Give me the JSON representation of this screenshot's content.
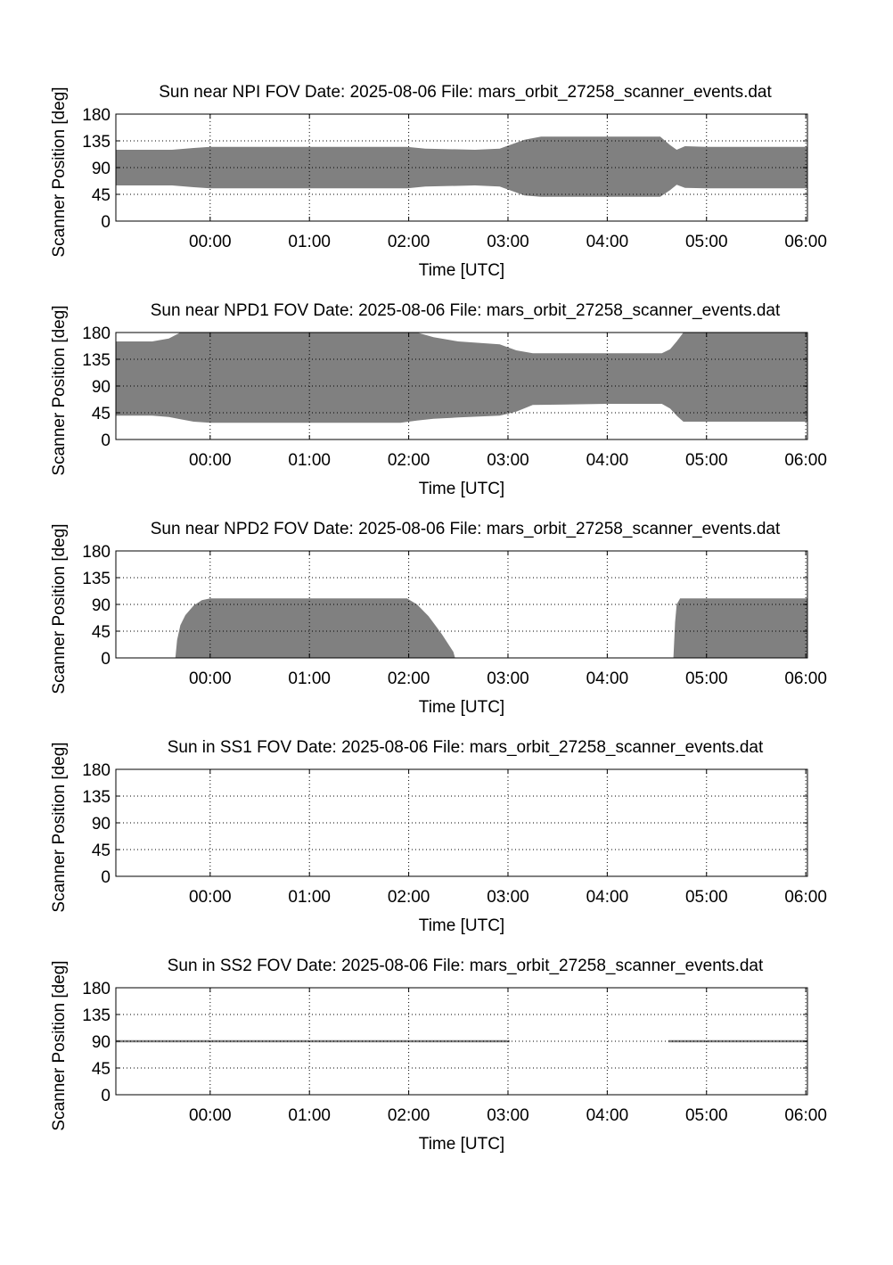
{
  "figure": {
    "background": "#ffffff",
    "fill_color": "#808080",
    "grid_color": "#000000"
  },
  "chart_data": [
    {
      "type": "area",
      "title": "Sun near NPI FOV   Date: 2025-08-06   File: mars_orbit_27258_scanner_events.dat",
      "xlabel": "Time [UTC]",
      "ylabel": "Scanner Position [deg]",
      "xlim": [
        "-00:57",
        "06:01"
      ],
      "ylim": [
        0,
        180
      ],
      "xticks": [
        "00:00",
        "01:00",
        "02:00",
        "03:00",
        "04:00",
        "05:00",
        "06:00"
      ],
      "yticks": [
        0,
        45,
        90,
        135,
        180
      ],
      "grid": true,
      "bands": [
        {
          "t": [
            "-00:57",
            "-00:23",
            "-00:10",
            "00:00",
            "01:00",
            "01:59",
            "02:10",
            "02:40",
            "02:55",
            "03:01",
            "03:10",
            "03:20",
            "04:00",
            "04:32",
            "04:38",
            "04:42",
            "04:47",
            "05:00",
            "06:01"
          ],
          "lower": [
            60,
            60,
            57,
            55,
            55,
            55,
            58,
            60,
            58,
            52,
            43,
            41,
            41,
            41,
            52,
            61,
            56,
            55,
            55
          ],
          "upper": [
            120,
            120,
            123,
            125,
            125,
            125,
            122,
            120,
            122,
            128,
            137,
            142,
            142,
            142,
            128,
            120,
            126,
            125,
            125
          ]
        }
      ]
    },
    {
      "type": "area",
      "title": "Sun near NPD1 FOV   Date: 2025-08-06   File: mars_orbit_27258_scanner_events.dat",
      "xlabel": "Time [UTC]",
      "ylabel": "Scanner Position [deg]",
      "xlim": [
        "-00:57",
        "06:01"
      ],
      "ylim": [
        0,
        180
      ],
      "xticks": [
        "00:00",
        "01:00",
        "02:00",
        "03:00",
        "04:00",
        "05:00",
        "06:00"
      ],
      "yticks": [
        0,
        45,
        90,
        135,
        180
      ],
      "grid": true,
      "bands": [
        {
          "t": [
            "-00:57",
            "-00:35",
            "-00:25",
            "-00:18",
            "-00:10",
            "00:00",
            "01:00",
            "01:55",
            "02:05",
            "02:15",
            "02:30",
            "02:55",
            "03:05",
            "03:15",
            "04:00",
            "04:33",
            "04:38",
            "04:42",
            "04:46",
            "05:00",
            "06:01"
          ],
          "lower": [
            40,
            40,
            38,
            34,
            30,
            28,
            28,
            28,
            32,
            35,
            37,
            40,
            47,
            58,
            60,
            60,
            52,
            40,
            30,
            30,
            30
          ],
          "upper": [
            165,
            165,
            170,
            180,
            180,
            180,
            180,
            180,
            180,
            172,
            165,
            160,
            150,
            145,
            145,
            145,
            152,
            165,
            180,
            180,
            180
          ]
        }
      ]
    },
    {
      "type": "area",
      "title": "Sun near NPD2 FOV   Date: 2025-08-06   File: mars_orbit_27258_scanner_events.dat",
      "xlabel": "Time [UTC]",
      "ylabel": "Scanner Position [deg]",
      "xlim": [
        "-00:57",
        "06:01"
      ],
      "ylim": [
        0,
        180
      ],
      "xticks": [
        "00:00",
        "01:00",
        "02:00",
        "03:00",
        "04:00",
        "05:00",
        "06:00"
      ],
      "yticks": [
        0,
        45,
        90,
        135,
        180
      ],
      "grid": true,
      "bands": [
        {
          "t": [
            "-00:21",
            "-00:20",
            "-00:18",
            "-00:15",
            "-00:10",
            "-00:05",
            "00:00",
            "01:00",
            "01:59",
            "02:05",
            "02:12",
            "02:20",
            "02:27",
            "02:28"
          ],
          "lower": [
            0,
            0,
            0,
            0,
            0,
            0,
            0,
            0,
            0,
            0,
            0,
            0,
            0,
            0
          ],
          "upper": [
            0,
            30,
            55,
            72,
            88,
            97,
            100,
            100,
            100,
            90,
            70,
            40,
            10,
            0
          ]
        },
        {
          "t": [
            "04:40",
            "04:41",
            "04:42",
            "04:44",
            "06:01"
          ],
          "lower": [
            0,
            0,
            0,
            0,
            0
          ],
          "upper": [
            0,
            60,
            90,
            100,
            100
          ]
        }
      ]
    },
    {
      "type": "area",
      "title": "Sun in SS1 FOV   Date: 2025-08-06   File: mars_orbit_27258_scanner_events.dat",
      "xlabel": "Time [UTC]",
      "ylabel": "Scanner Position [deg]",
      "xlim": [
        "-00:57",
        "06:01"
      ],
      "ylim": [
        0,
        180
      ],
      "xticks": [
        "00:00",
        "01:00",
        "02:00",
        "03:00",
        "04:00",
        "05:00",
        "06:00"
      ],
      "yticks": [
        0,
        45,
        90,
        135,
        180
      ],
      "grid": true,
      "bands": []
    },
    {
      "type": "area",
      "title": "Sun in SS2 FOV   Date: 2025-08-06   File: mars_orbit_27258_scanner_events.dat",
      "xlabel": "Time [UTC]",
      "ylabel": "Scanner Position [deg]",
      "xlim": [
        "-00:57",
        "06:01"
      ],
      "ylim": [
        0,
        180
      ],
      "xticks": [
        "00:00",
        "01:00",
        "02:00",
        "03:00",
        "04:00",
        "05:00",
        "06:00"
      ],
      "yticks": [
        0,
        45,
        90,
        135,
        180
      ],
      "grid": true,
      "bands": [
        {
          "t": [
            "-00:57",
            "-00:35",
            "-00:15",
            "03:01"
          ],
          "lower": [
            88,
            88,
            88,
            88
          ],
          "upper": [
            92,
            92,
            92,
            92
          ]
        },
        {
          "t": [
            "04:37",
            "06:01"
          ],
          "lower": [
            88,
            88
          ],
          "upper": [
            92,
            92
          ]
        }
      ]
    }
  ]
}
